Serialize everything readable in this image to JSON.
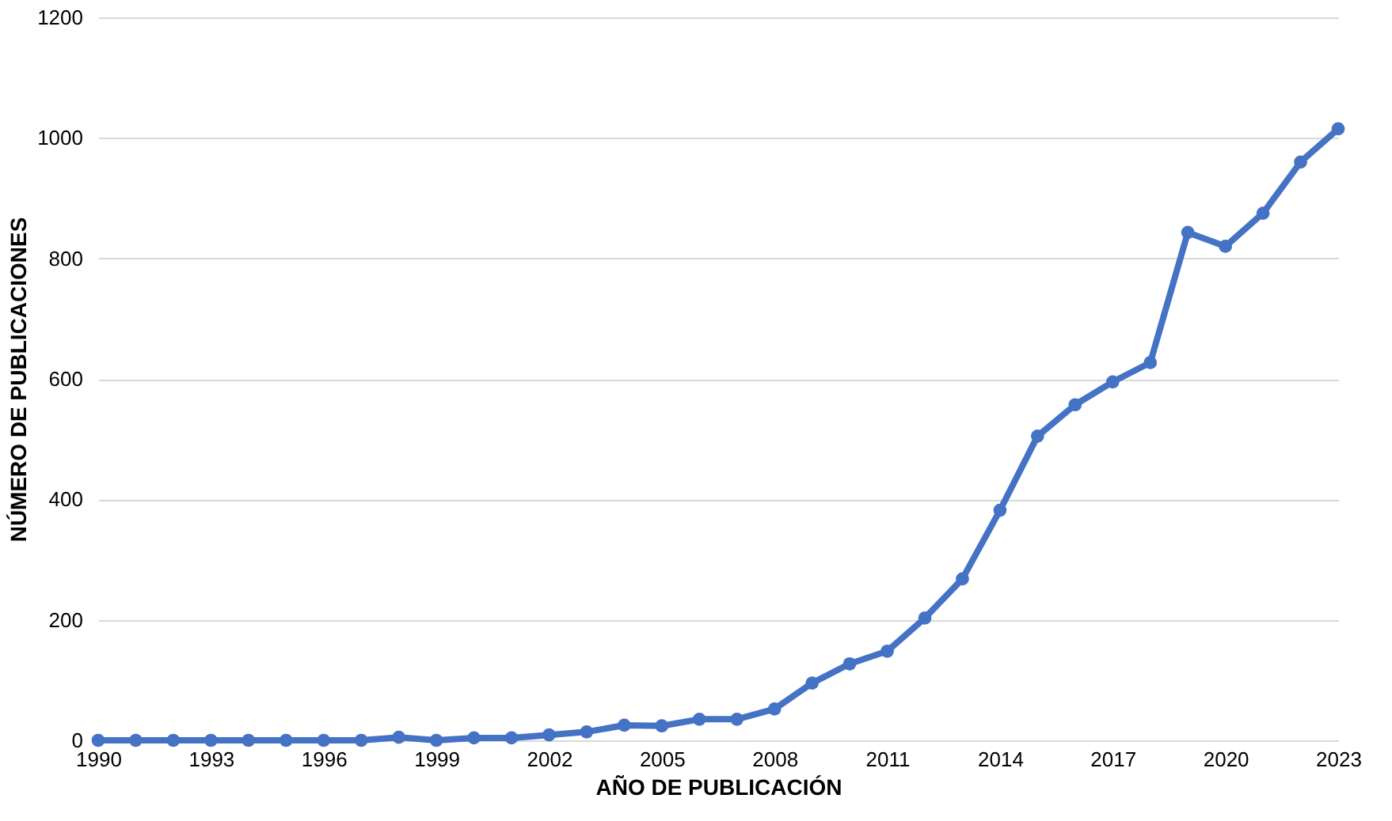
{
  "chart_data": {
    "type": "line",
    "xlabel": "AÑO DE PUBLICACIÓN",
    "ylabel": "NÚMERO DE PUBLICACIONES",
    "x": [
      1990,
      1991,
      1992,
      1993,
      1994,
      1995,
      1996,
      1997,
      1998,
      1999,
      2000,
      2001,
      2002,
      2003,
      2004,
      2005,
      2006,
      2007,
      2008,
      2009,
      2010,
      2011,
      2012,
      2013,
      2014,
      2015,
      2016,
      2017,
      2018,
      2019,
      2020,
      2021,
      2022,
      2023
    ],
    "series": [
      {
        "color": "#4472c4",
        "values": [
          0,
          0,
          0,
          0,
          0,
          0,
          0,
          0,
          5,
          0,
          4,
          4,
          9,
          14,
          25,
          24,
          35,
          35,
          52,
          95,
          127,
          148,
          203,
          268,
          382,
          505,
          557,
          595,
          627,
          843,
          820,
          875,
          960,
          1015
        ]
      }
    ],
    "xlim": [
      1990,
      2023
    ],
    "xticks": [
      1990,
      1993,
      1996,
      1999,
      2002,
      2005,
      2008,
      2011,
      2014,
      2017,
      2020,
      2023
    ],
    "ylim": [
      0,
      1200
    ],
    "yticks": [
      0,
      200,
      400,
      600,
      800,
      1000,
      1200
    ],
    "grid": "y",
    "marker": "circle",
    "line_style": "solid"
  }
}
